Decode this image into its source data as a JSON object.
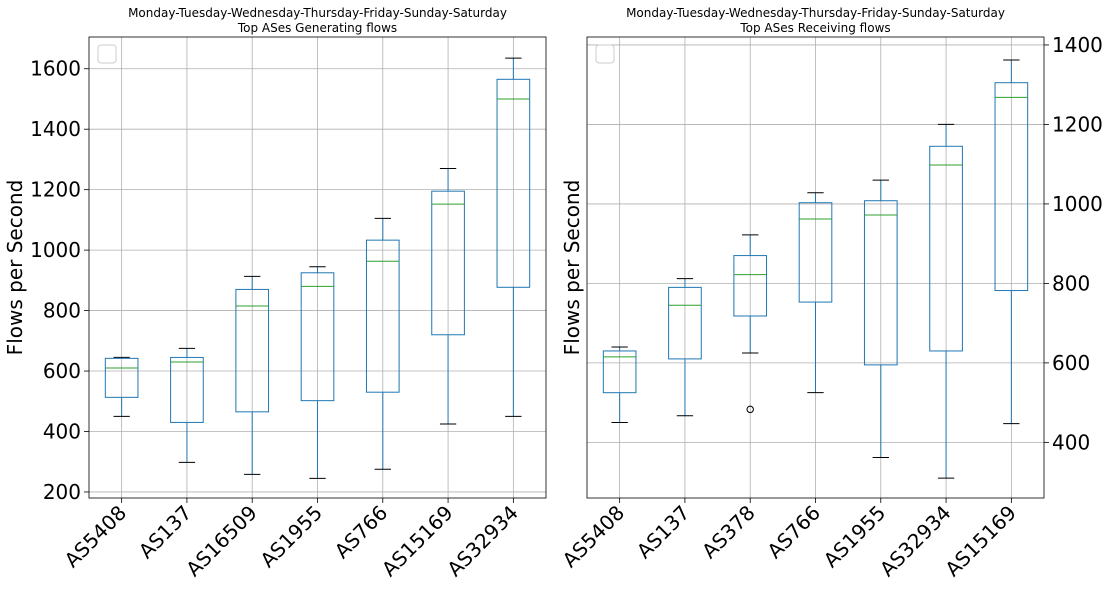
{
  "chart_data": [
    {
      "type": "box",
      "title": "Monday-Tuesday-Wednesday-Thursday-Friday-Sunday-Saturday",
      "subtitle": "Top ASes Generating flows",
      "ylabel": "Flows per Second",
      "ylim": [
        180,
        1705
      ],
      "yticks": [
        200,
        400,
        600,
        800,
        1000,
        1200,
        1400,
        1600
      ],
      "yaxis_side": "left",
      "grid": true,
      "legend": "top-left (empty)",
      "categories": [
        "AS5408",
        "AS137",
        "AS16509",
        "AS1955",
        "AS766",
        "AS15169",
        "AS32934"
      ],
      "boxes": [
        {
          "whislo": 450,
          "q1": 513,
          "med": 610,
          "q3": 642,
          "whishi": 645,
          "fliers": []
        },
        {
          "whislo": 298,
          "q1": 430,
          "med": 630,
          "q3": 645,
          "whishi": 675,
          "fliers": []
        },
        {
          "whislo": 258,
          "q1": 465,
          "med": 815,
          "q3": 870,
          "whishi": 913,
          "fliers": []
        },
        {
          "whislo": 245,
          "q1": 502,
          "med": 880,
          "q3": 925,
          "whishi": 945,
          "fliers": []
        },
        {
          "whislo": 275,
          "q1": 530,
          "med": 963,
          "q3": 1033,
          "whishi": 1105,
          "fliers": []
        },
        {
          "whislo": 425,
          "q1": 720,
          "med": 1152,
          "q3": 1195,
          "whishi": 1270,
          "fliers": []
        },
        {
          "whislo": 450,
          "q1": 877,
          "med": 1500,
          "q3": 1565,
          "whishi": 1635,
          "fliers": []
        }
      ]
    },
    {
      "type": "box",
      "title": "Monday-Tuesday-Wednesday-Thursday-Friday-Sunday-Saturday",
      "subtitle": "Top ASes Receiving flows",
      "ylabel": "Flows per Second",
      "ylim": [
        260,
        1420
      ],
      "yticks": [
        400,
        600,
        800,
        1000,
        1200,
        1400
      ],
      "yaxis_side": "right",
      "grid": true,
      "legend": "top-left (empty)",
      "categories": [
        "AS5408",
        "AS137",
        "AS378",
        "AS766",
        "AS1955",
        "AS32934",
        "AS15169"
      ],
      "boxes": [
        {
          "whislo": 450,
          "q1": 525,
          "med": 615,
          "q3": 630,
          "whishi": 640,
          "fliers": []
        },
        {
          "whislo": 467,
          "q1": 610,
          "med": 745,
          "q3": 790,
          "whishi": 812,
          "fliers": []
        },
        {
          "whislo": 625,
          "q1": 718,
          "med": 822,
          "q3": 870,
          "whishi": 922,
          "fliers": [
            483
          ]
        },
        {
          "whislo": 525,
          "q1": 753,
          "med": 962,
          "q3": 1003,
          "whishi": 1028,
          "fliers": []
        },
        {
          "whislo": 362,
          "q1": 595,
          "med": 972,
          "q3": 1008,
          "whishi": 1060,
          "fliers": []
        },
        {
          "whislo": 310,
          "q1": 630,
          "med": 1098,
          "q3": 1145,
          "whishi": 1200,
          "fliers": []
        },
        {
          "whislo": 447,
          "q1": 782,
          "med": 1268,
          "q3": 1305,
          "whishi": 1362,
          "fliers": []
        }
      ]
    }
  ]
}
